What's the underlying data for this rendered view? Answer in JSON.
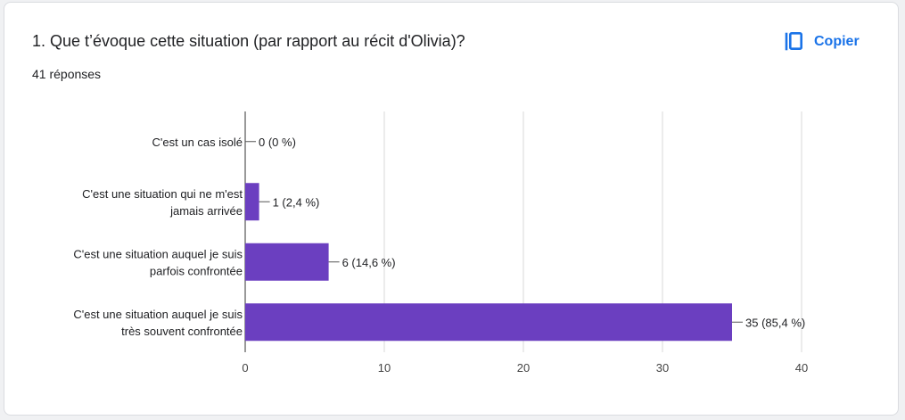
{
  "question": {
    "title": "1. Que t’évoque cette situation (par rapport au récit d'Olivia)?",
    "responses": "41 réponses"
  },
  "copy_button": {
    "label": "Copier",
    "icon": "copy-icon"
  },
  "colors": {
    "bar": "#6b3fc0",
    "grid": "#d9d9d9",
    "text": "#202124",
    "accent": "#1a73e8"
  },
  "chart_data": {
    "type": "bar",
    "orientation": "horizontal",
    "categories": [
      [
        "C'est un cas isolé"
      ],
      [
        "C'est une situation qui ne m'est",
        "jamais arrivée"
      ],
      [
        "C'est une situation auquel je suis",
        "parfois confrontée"
      ],
      [
        "C'est une situation auquel je suis",
        "très souvent confrontée"
      ]
    ],
    "values": [
      0,
      1,
      6,
      35
    ],
    "data_labels": [
      "0 (0 %)",
      "1 (2,4 %)",
      "6 (14,6 %)",
      "35 (85,4 %)"
    ],
    "xlim": [
      0,
      40
    ],
    "xticks": [
      0,
      10,
      20,
      30,
      40
    ],
    "grid": true,
    "legend": "none"
  }
}
